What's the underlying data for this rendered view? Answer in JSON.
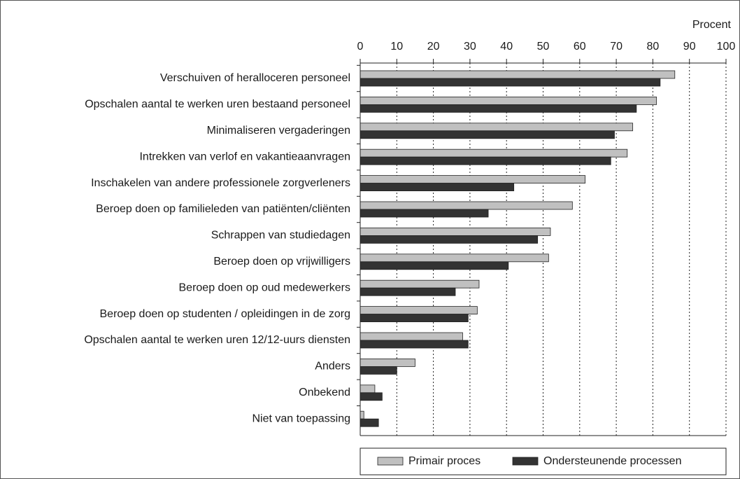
{
  "chart_data": {
    "type": "hbar",
    "xlabel": "Procent",
    "categories": [
      "Verschuiven of heralloceren personeel",
      "Opschalen aantal te werken uren bestaand personeel",
      "Minimaliseren vergaderingen",
      "Intrekken van verlof en vakantieaanvragen",
      "Inschakelen van andere professionele zorgverleners",
      "Beroep doen op familieleden van patiënten/cliënten",
      "Schrappen van studiedagen",
      "Beroep doen op vrijwilligers",
      "Beroep doen op oud medewerkers",
      "Beroep doen op studenten / opleidingen in de zorg",
      "Opschalen aantal te werken uren 12/12-uurs diensten",
      "Anders",
      "Onbekend",
      "Niet van toepassing"
    ],
    "series": [
      {
        "name": "Primair proces",
        "color": "#c0c0c0",
        "values": [
          86,
          81,
          74.5,
          73,
          61.5,
          58,
          52,
          51.5,
          32.5,
          32,
          28,
          15,
          4,
          1
        ]
      },
      {
        "name": "Ondersteunende processen",
        "color": "#333333",
        "values": [
          82,
          75.5,
          69.5,
          68.5,
          42,
          35,
          48.5,
          40.5,
          26,
          29.5,
          29.5,
          10,
          6,
          5
        ]
      }
    ],
    "xlim": [
      0,
      100
    ],
    "xticks": [
      0,
      10,
      20,
      30,
      40,
      50,
      60,
      70,
      80,
      90,
      100
    ],
    "grid": true,
    "legend": "bottom"
  }
}
